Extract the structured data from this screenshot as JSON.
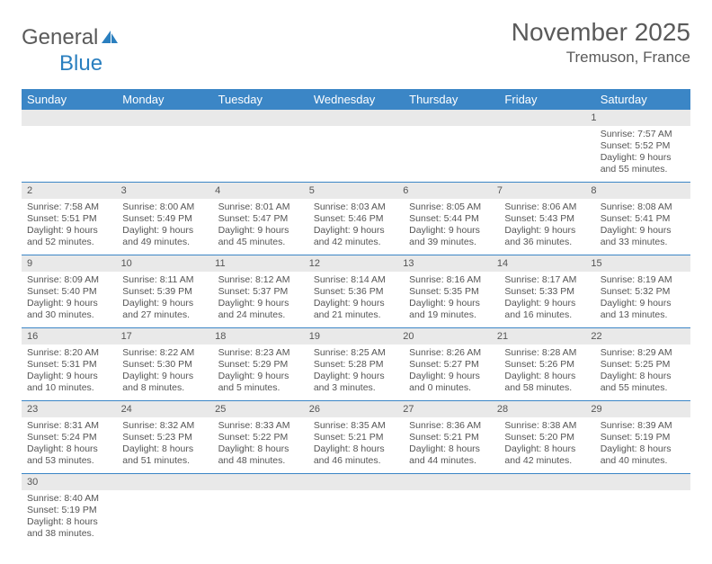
{
  "logo": {
    "general": "General",
    "blue": "Blue"
  },
  "title": "November 2025",
  "location": "Tremuson, France",
  "colors": {
    "header_bg": "#3b86c6",
    "header_text": "#ffffff",
    "daynum_bg": "#e9e9e9",
    "border": "#3b86c6",
    "text": "#555555",
    "logo_blue": "#2a7fbf"
  },
  "day_headers": [
    "Sunday",
    "Monday",
    "Tuesday",
    "Wednesday",
    "Thursday",
    "Friday",
    "Saturday"
  ],
  "weeks": [
    {
      "nums": [
        "",
        "",
        "",
        "",
        "",
        "",
        "1"
      ],
      "cells": [
        null,
        null,
        null,
        null,
        null,
        null,
        {
          "sunrise": "Sunrise: 7:57 AM",
          "sunset": "Sunset: 5:52 PM",
          "day1": "Daylight: 9 hours",
          "day2": "and 55 minutes."
        }
      ]
    },
    {
      "nums": [
        "2",
        "3",
        "4",
        "5",
        "6",
        "7",
        "8"
      ],
      "cells": [
        {
          "sunrise": "Sunrise: 7:58 AM",
          "sunset": "Sunset: 5:51 PM",
          "day1": "Daylight: 9 hours",
          "day2": "and 52 minutes."
        },
        {
          "sunrise": "Sunrise: 8:00 AM",
          "sunset": "Sunset: 5:49 PM",
          "day1": "Daylight: 9 hours",
          "day2": "and 49 minutes."
        },
        {
          "sunrise": "Sunrise: 8:01 AM",
          "sunset": "Sunset: 5:47 PM",
          "day1": "Daylight: 9 hours",
          "day2": "and 45 minutes."
        },
        {
          "sunrise": "Sunrise: 8:03 AM",
          "sunset": "Sunset: 5:46 PM",
          "day1": "Daylight: 9 hours",
          "day2": "and 42 minutes."
        },
        {
          "sunrise": "Sunrise: 8:05 AM",
          "sunset": "Sunset: 5:44 PM",
          "day1": "Daylight: 9 hours",
          "day2": "and 39 minutes."
        },
        {
          "sunrise": "Sunrise: 8:06 AM",
          "sunset": "Sunset: 5:43 PM",
          "day1": "Daylight: 9 hours",
          "day2": "and 36 minutes."
        },
        {
          "sunrise": "Sunrise: 8:08 AM",
          "sunset": "Sunset: 5:41 PM",
          "day1": "Daylight: 9 hours",
          "day2": "and 33 minutes."
        }
      ]
    },
    {
      "nums": [
        "9",
        "10",
        "11",
        "12",
        "13",
        "14",
        "15"
      ],
      "cells": [
        {
          "sunrise": "Sunrise: 8:09 AM",
          "sunset": "Sunset: 5:40 PM",
          "day1": "Daylight: 9 hours",
          "day2": "and 30 minutes."
        },
        {
          "sunrise": "Sunrise: 8:11 AM",
          "sunset": "Sunset: 5:39 PM",
          "day1": "Daylight: 9 hours",
          "day2": "and 27 minutes."
        },
        {
          "sunrise": "Sunrise: 8:12 AM",
          "sunset": "Sunset: 5:37 PM",
          "day1": "Daylight: 9 hours",
          "day2": "and 24 minutes."
        },
        {
          "sunrise": "Sunrise: 8:14 AM",
          "sunset": "Sunset: 5:36 PM",
          "day1": "Daylight: 9 hours",
          "day2": "and 21 minutes."
        },
        {
          "sunrise": "Sunrise: 8:16 AM",
          "sunset": "Sunset: 5:35 PM",
          "day1": "Daylight: 9 hours",
          "day2": "and 19 minutes."
        },
        {
          "sunrise": "Sunrise: 8:17 AM",
          "sunset": "Sunset: 5:33 PM",
          "day1": "Daylight: 9 hours",
          "day2": "and 16 minutes."
        },
        {
          "sunrise": "Sunrise: 8:19 AM",
          "sunset": "Sunset: 5:32 PM",
          "day1": "Daylight: 9 hours",
          "day2": "and 13 minutes."
        }
      ]
    },
    {
      "nums": [
        "16",
        "17",
        "18",
        "19",
        "20",
        "21",
        "22"
      ],
      "cells": [
        {
          "sunrise": "Sunrise: 8:20 AM",
          "sunset": "Sunset: 5:31 PM",
          "day1": "Daylight: 9 hours",
          "day2": "and 10 minutes."
        },
        {
          "sunrise": "Sunrise: 8:22 AM",
          "sunset": "Sunset: 5:30 PM",
          "day1": "Daylight: 9 hours",
          "day2": "and 8 minutes."
        },
        {
          "sunrise": "Sunrise: 8:23 AM",
          "sunset": "Sunset: 5:29 PM",
          "day1": "Daylight: 9 hours",
          "day2": "and 5 minutes."
        },
        {
          "sunrise": "Sunrise: 8:25 AM",
          "sunset": "Sunset: 5:28 PM",
          "day1": "Daylight: 9 hours",
          "day2": "and 3 minutes."
        },
        {
          "sunrise": "Sunrise: 8:26 AM",
          "sunset": "Sunset: 5:27 PM",
          "day1": "Daylight: 9 hours",
          "day2": "and 0 minutes."
        },
        {
          "sunrise": "Sunrise: 8:28 AM",
          "sunset": "Sunset: 5:26 PM",
          "day1": "Daylight: 8 hours",
          "day2": "and 58 minutes."
        },
        {
          "sunrise": "Sunrise: 8:29 AM",
          "sunset": "Sunset: 5:25 PM",
          "day1": "Daylight: 8 hours",
          "day2": "and 55 minutes."
        }
      ]
    },
    {
      "nums": [
        "23",
        "24",
        "25",
        "26",
        "27",
        "28",
        "29"
      ],
      "cells": [
        {
          "sunrise": "Sunrise: 8:31 AM",
          "sunset": "Sunset: 5:24 PM",
          "day1": "Daylight: 8 hours",
          "day2": "and 53 minutes."
        },
        {
          "sunrise": "Sunrise: 8:32 AM",
          "sunset": "Sunset: 5:23 PM",
          "day1": "Daylight: 8 hours",
          "day2": "and 51 minutes."
        },
        {
          "sunrise": "Sunrise: 8:33 AM",
          "sunset": "Sunset: 5:22 PM",
          "day1": "Daylight: 8 hours",
          "day2": "and 48 minutes."
        },
        {
          "sunrise": "Sunrise: 8:35 AM",
          "sunset": "Sunset: 5:21 PM",
          "day1": "Daylight: 8 hours",
          "day2": "and 46 minutes."
        },
        {
          "sunrise": "Sunrise: 8:36 AM",
          "sunset": "Sunset: 5:21 PM",
          "day1": "Daylight: 8 hours",
          "day2": "and 44 minutes."
        },
        {
          "sunrise": "Sunrise: 8:38 AM",
          "sunset": "Sunset: 5:20 PM",
          "day1": "Daylight: 8 hours",
          "day2": "and 42 minutes."
        },
        {
          "sunrise": "Sunrise: 8:39 AM",
          "sunset": "Sunset: 5:19 PM",
          "day1": "Daylight: 8 hours",
          "day2": "and 40 minutes."
        }
      ]
    },
    {
      "nums": [
        "30",
        "",
        "",
        "",
        "",
        "",
        ""
      ],
      "cells": [
        {
          "sunrise": "Sunrise: 8:40 AM",
          "sunset": "Sunset: 5:19 PM",
          "day1": "Daylight: 8 hours",
          "day2": "and 38 minutes."
        },
        null,
        null,
        null,
        null,
        null,
        null
      ]
    }
  ]
}
